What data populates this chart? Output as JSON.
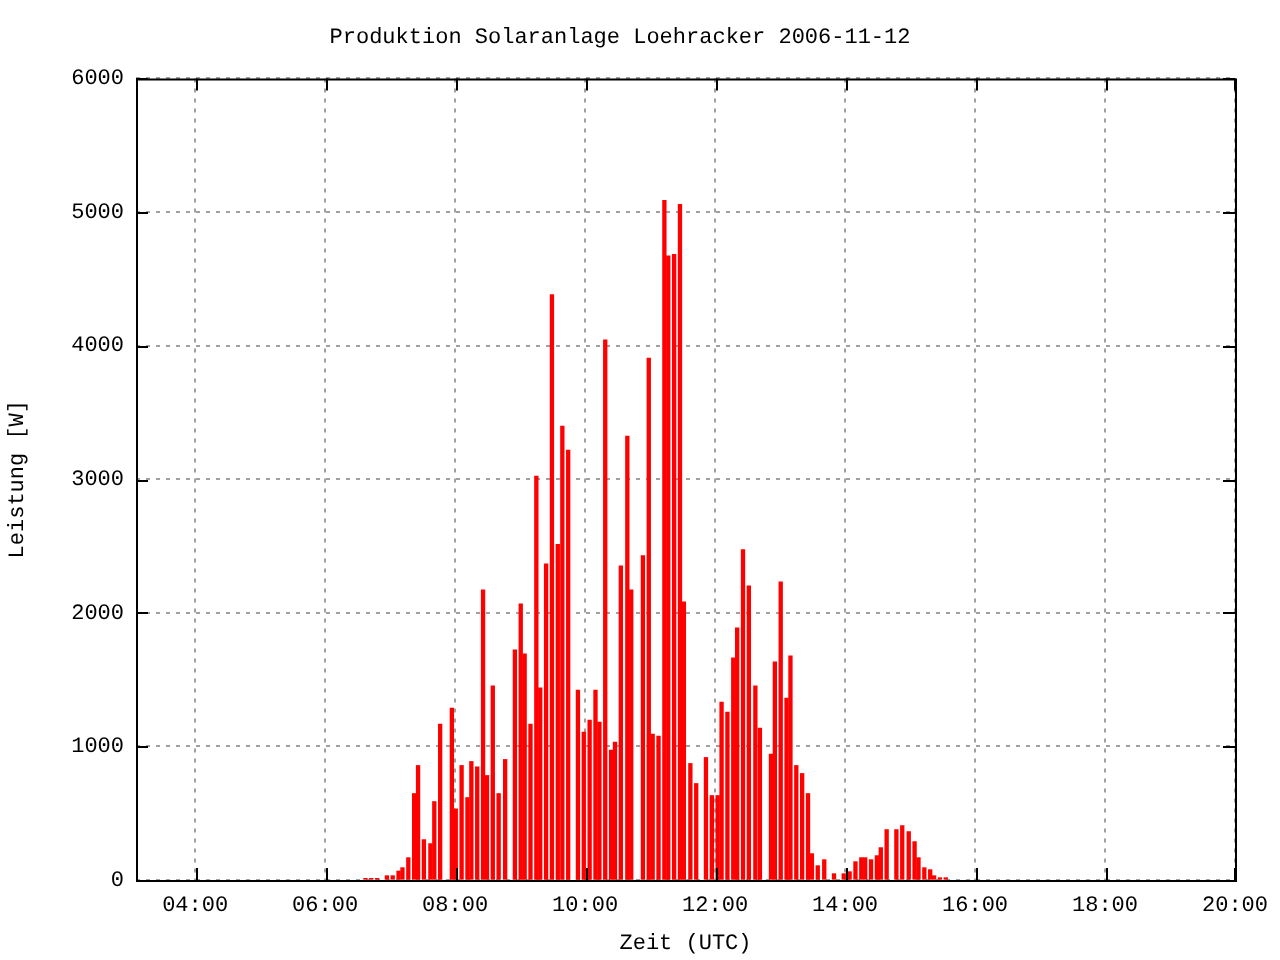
{
  "chart_data": {
    "type": "bar",
    "title": "Produktion Solaranlage Loehracker 2006-11-12",
    "xlabel": "Zeit (UTC)",
    "ylabel": "Leistung [W]",
    "x": [
      6.62,
      6.71,
      6.8,
      6.95,
      7.04,
      7.13,
      7.19,
      7.28,
      7.37,
      7.43,
      7.52,
      7.62,
      7.68,
      7.77,
      7.95,
      8.01,
      8.1,
      8.19,
      8.25,
      8.34,
      8.43,
      8.49,
      8.58,
      8.67,
      8.77,
      8.92,
      9.01,
      9.07,
      9.16,
      9.25,
      9.31,
      9.4,
      9.49,
      9.58,
      9.65,
      9.74,
      9.89,
      9.98,
      10.07,
      10.16,
      10.22,
      10.31,
      10.4,
      10.46,
      10.55,
      10.65,
      10.71,
      10.89,
      10.98,
      11.04,
      11.13,
      11.22,
      11.28,
      11.37,
      11.46,
      11.52,
      11.62,
      11.71,
      11.86,
      11.95,
      12.04,
      12.1,
      12.19,
      12.28,
      12.34,
      12.43,
      12.52,
      12.62,
      12.69,
      12.86,
      12.92,
      13.01,
      13.1,
      13.16,
      13.25,
      13.34,
      13.43,
      13.49,
      13.58,
      13.68,
      13.83,
      13.98,
      14.07,
      14.16,
      14.25,
      14.31,
      14.4,
      14.49,
      14.55,
      14.64,
      14.79,
      14.88,
      14.98,
      15.07,
      15.13,
      15.22,
      15.31,
      15.37,
      15.46,
      15.55
    ],
    "values": [
      10,
      10,
      10,
      30,
      30,
      65,
      90,
      165,
      645,
      855,
      300,
      270,
      585,
      1165,
      1285,
      530,
      855,
      615,
      885,
      845,
      2170,
      780,
      1450,
      645,
      900,
      1720,
      2065,
      1690,
      1165,
      3020,
      1435,
      2365,
      4380,
      2510,
      3395,
      3215,
      1420,
      1105,
      1195,
      1420,
      1180,
      4040,
      970,
      1030,
      2350,
      3320,
      2170,
      2425,
      3905,
      1090,
      1075,
      5085,
      4670,
      4680,
      5055,
      2080,
      870,
      720,
      915,
      630,
      630,
      1330,
      1255,
      1660,
      1885,
      2470,
      2200,
      1450,
      1135,
      940,
      1630,
      2230,
      1360,
      1675,
      855,
      795,
      645,
      195,
      105,
      150,
      45,
      45,
      60,
      135,
      165,
      165,
      150,
      180,
      240,
      375,
      375,
      405,
      360,
      285,
      165,
      90,
      75,
      30,
      15,
      15
    ],
    "color": "#ff0000",
    "xlim": [
      3.09,
      20
    ],
    "xticks": [
      {
        "value": 4,
        "label": "04:00"
      },
      {
        "value": 6,
        "label": "06:00"
      },
      {
        "value": 8,
        "label": "08:00"
      },
      {
        "value": 10,
        "label": "10:00"
      },
      {
        "value": 12,
        "label": "12:00"
      },
      {
        "value": 14,
        "label": "14:00"
      },
      {
        "value": 16,
        "label": "16:00"
      },
      {
        "value": 18,
        "label": "18:00"
      },
      {
        "value": 20,
        "label": "20:00"
      }
    ],
    "ylim": [
      0,
      6000
    ],
    "yticks": [
      0,
      1000,
      2000,
      3000,
      4000,
      5000,
      6000
    ],
    "grid": true
  }
}
